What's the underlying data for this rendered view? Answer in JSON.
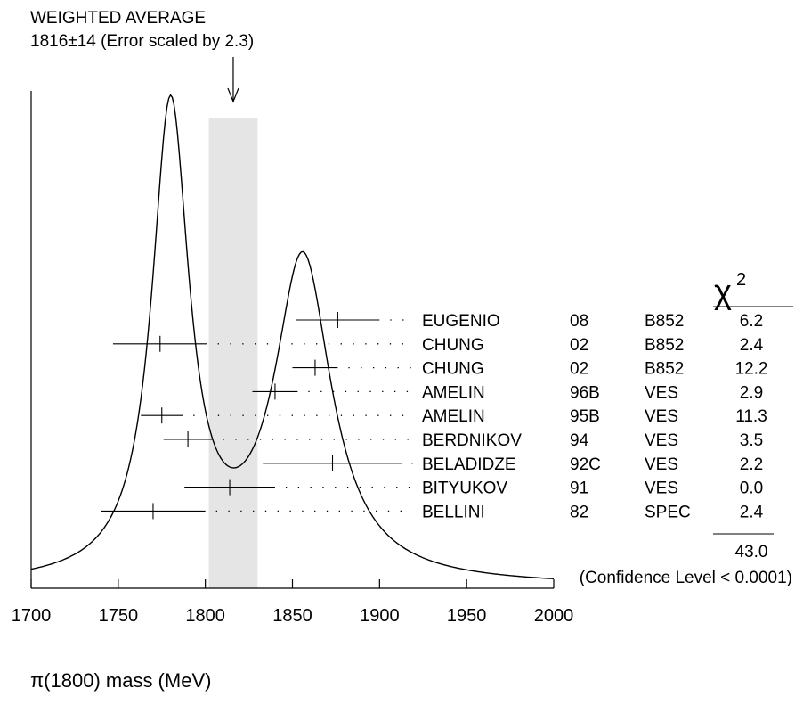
{
  "chart_data": {
    "type": "ideogram",
    "header": {
      "line1": "WEIGHTED AVERAGE",
      "line2": "1816±14 (Error scaled by 2.3)"
    },
    "xlabel": "π(1800) mass (MeV)",
    "xlim": [
      1700,
      2000
    ],
    "xticks": [
      1700,
      1750,
      1800,
      1850,
      1900,
      1950,
      2000
    ],
    "weighted_average": {
      "value": 1816,
      "error": 14
    },
    "chi2_symbol": "χ",
    "chi2_superscript": "2",
    "measurements": [
      {
        "author": "EUGENIO",
        "year": "08",
        "tech": "B852",
        "chi2": "6.2",
        "value": 1876,
        "err_minus": 24,
        "err_plus": 24
      },
      {
        "author": "CHUNG",
        "year": "02",
        "tech": "B852",
        "chi2": "2.4",
        "value": 1774,
        "err_minus": 27,
        "err_plus": 27
      },
      {
        "author": "CHUNG",
        "year": "02",
        "tech": "B852",
        "chi2": "12.2",
        "value": 1863,
        "err_minus": 13,
        "err_plus": 13
      },
      {
        "author": "AMELIN",
        "year": "96B",
        "tech": "VES",
        "chi2": "2.9",
        "value": 1840,
        "err_minus": 13,
        "err_plus": 13
      },
      {
        "author": "AMELIN",
        "year": "95B",
        "tech": "VES",
        "chi2": "11.3",
        "value": 1775,
        "err_minus": 12,
        "err_plus": 12
      },
      {
        "author": "BERDNIKOV",
        "year": "94",
        "tech": "VES",
        "chi2": "3.5",
        "value": 1790,
        "err_minus": 14,
        "err_plus": 14
      },
      {
        "author": "BELADIDZE",
        "year": "92C",
        "tech": "VES",
        "chi2": "2.2",
        "value": 1873,
        "err_minus": 40,
        "err_plus": 40
      },
      {
        "author": "BITYUKOV",
        "year": "91",
        "tech": "VES",
        "chi2": "0.0",
        "value": 1814,
        "err_minus": 26,
        "err_plus": 26
      },
      {
        "author": "BELLINI",
        "year": "82",
        "tech": "SPEC",
        "chi2": "2.4",
        "value": 1770,
        "err_minus": 30,
        "err_plus": 30
      }
    ],
    "chi2_total": "43.0",
    "confidence_level": "(Confidence Level < 0.0001)",
    "ideogram_peaks": [
      {
        "x": 1780,
        "height": 1.0,
        "sigma": 13
      },
      {
        "x": 1856,
        "height": 0.683,
        "sigma": 20
      }
    ]
  }
}
